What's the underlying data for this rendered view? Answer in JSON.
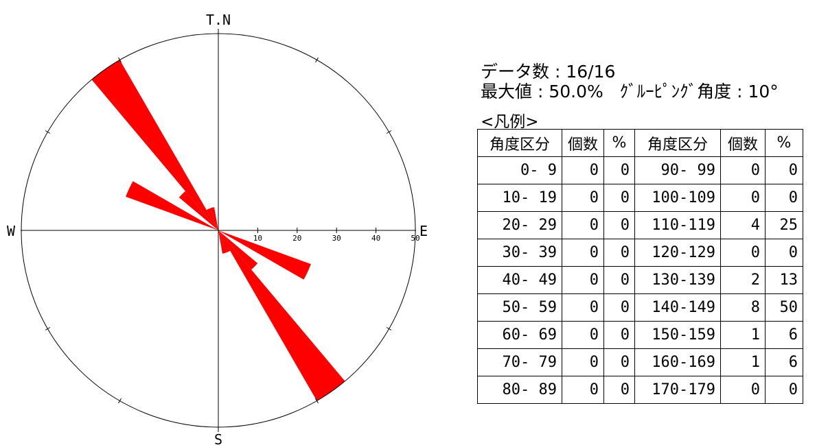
{
  "info": {
    "data_count_label": "データ数",
    "data_count_value": "16/16",
    "max_label": "最大値",
    "max_value": "50.0%",
    "grouping_label": "ｸﾞﾙｰﾋﾟﾝｸﾞ角度",
    "grouping_value": "10°"
  },
  "legend_title": "<凡例>",
  "table": {
    "headers": [
      "角度区分",
      "個数",
      "%",
      "角度区分",
      "個数",
      "%"
    ],
    "rows": [
      [
        "0-  9",
        "0",
        "0",
        "90- 99",
        "0",
        "0"
      ],
      [
        "10- 19",
        "0",
        "0",
        "100-109",
        "0",
        "0"
      ],
      [
        "20- 29",
        "0",
        "0",
        "110-119",
        "4",
        "25"
      ],
      [
        "30- 39",
        "0",
        "0",
        "120-129",
        "0",
        "0"
      ],
      [
        "40- 49",
        "0",
        "0",
        "130-139",
        "2",
        "13"
      ],
      [
        "50- 59",
        "0",
        "0",
        "140-149",
        "8",
        "50"
      ],
      [
        "60- 69",
        "0",
        "0",
        "150-159",
        "1",
        "6"
      ],
      [
        "70- 79",
        "0",
        "0",
        "160-169",
        "1",
        "6"
      ],
      [
        "80- 89",
        "0",
        "0",
        "170-179",
        "0",
        "0"
      ]
    ]
  },
  "chart_data": {
    "type": "rose",
    "directions": {
      "north": "T.N",
      "east": "E",
      "south": "S",
      "west": "W"
    },
    "radial_ticks": [
      "10",
      "20",
      "30",
      "40",
      "50"
    ],
    "radial_max": 50,
    "bin_width_deg": 10,
    "bins": [
      {
        "from": 110,
        "to": 120,
        "percent": 25
      },
      {
        "from": 130,
        "to": 140,
        "percent": 13
      },
      {
        "from": 140,
        "to": 150,
        "percent": 50
      },
      {
        "from": 150,
        "to": 160,
        "percent": 6
      },
      {
        "from": 160,
        "to": 170,
        "percent": 6
      }
    ],
    "color": "#ff0000",
    "symmetric": true
  }
}
